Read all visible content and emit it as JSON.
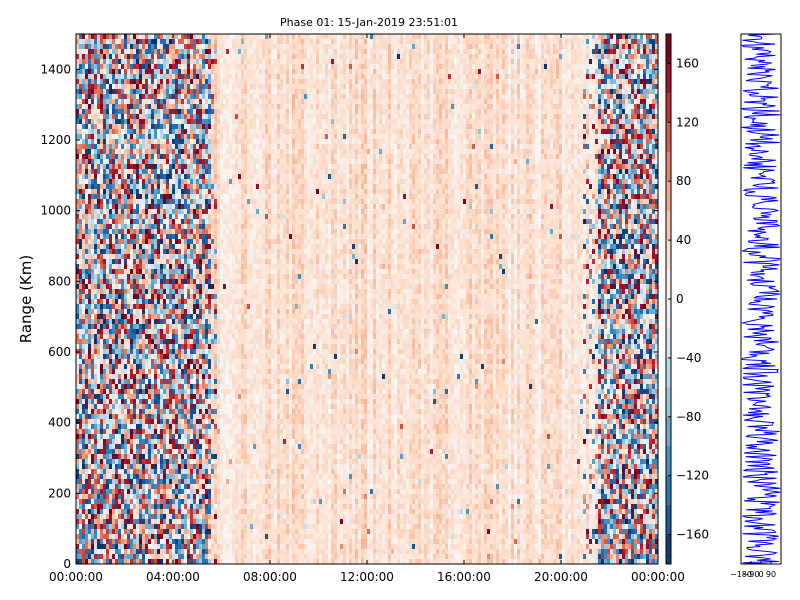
{
  "chart_data": [
    {
      "type": "heatmap",
      "title": "Phase 01: 15-Jan-2019 23:51:01",
      "xlabel": "",
      "ylabel": "Range (Km)",
      "x_ticks": [
        "00:00:00",
        "04:00:00",
        "08:00:00",
        "12:00:00",
        "16:00:00",
        "20:00:00",
        "00:00:00"
      ],
      "x_range": [
        "00:00:00",
        "24:00:00"
      ],
      "y_ticks": [
        0,
        200,
        400,
        600,
        800,
        1000,
        1200,
        1400
      ],
      "ylim": [
        0,
        1500
      ],
      "color_scale": {
        "colormap": "RdBu_r",
        "vmin": -180,
        "vmax": 180,
        "ticks": [
          160,
          120,
          80,
          40,
          0,
          -40,
          -80,
          -120,
          -160
        ]
      },
      "data_description_regions": [
        {
          "time": "00:00:00-05:30:00",
          "phase": "noisy, full range -180 to 180"
        },
        {
          "time": "05:30:00-21:30:00",
          "phase": "mostly 0 to 60, light red"
        },
        {
          "time": "21:30:00-24:00:00",
          "phase": "noisy, full range -180 to 180"
        }
      ],
      "grid": false
    },
    {
      "type": "line",
      "xlabel": "",
      "ylabel": "",
      "x_tick_labels": [
        "−180",
        "−90",
        "0",
        "90"
      ],
      "xlim": [
        -180,
        180
      ],
      "ylim": [
        0,
        1500
      ],
      "series_color": "#0000ff",
      "grid": false
    }
  ]
}
